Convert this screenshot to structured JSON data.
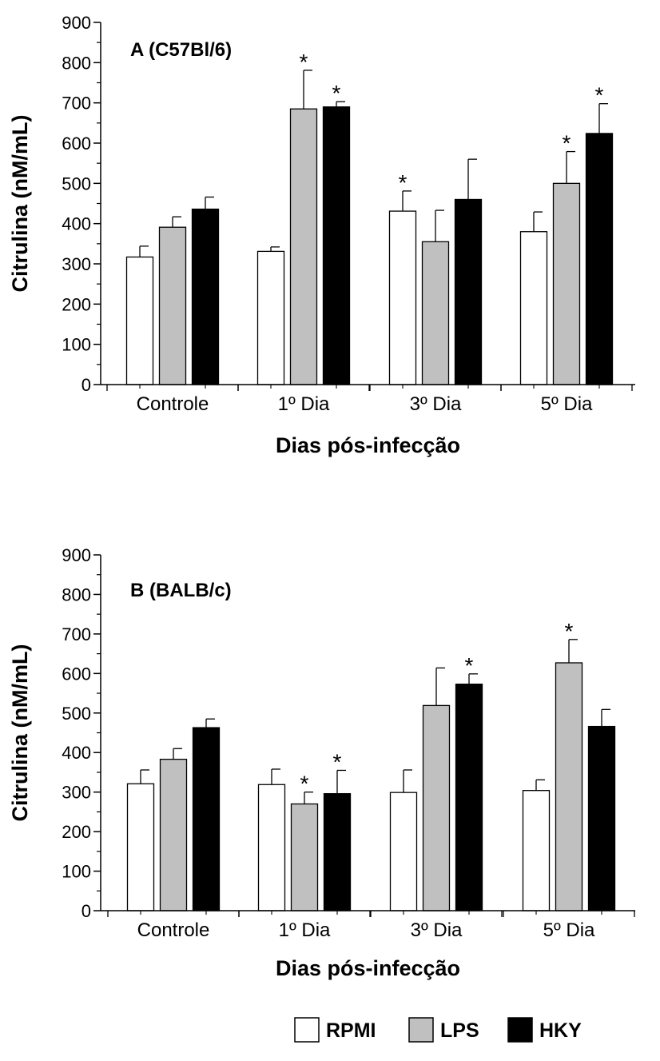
{
  "legend": [
    {
      "name": "RPMI",
      "color": "#ffffff"
    },
    {
      "name": "LPS",
      "color": "#c0c0c0"
    },
    {
      "name": "HKY",
      "color": "#000000"
    }
  ],
  "chart_data": [
    {
      "type": "bar",
      "title": "A (C57Bl/6)",
      "xlabel": "Dias pós-infecção",
      "ylabel": "Citrulina (nM/mL)",
      "ylim": [
        0,
        900
      ],
      "yticks": [
        "0",
        "100",
        "200",
        "300",
        "400",
        "500",
        "600",
        "700",
        "800",
        "900"
      ],
      "categories": [
        "Controle",
        "1º Dia",
        "3º Dia",
        "5º Dia"
      ],
      "series": [
        {
          "name": "RPMI",
          "color": "#ffffff",
          "values": [
            317,
            331,
            431,
            380
          ],
          "errors": [
            27,
            11,
            50,
            49
          ],
          "significant": [
            false,
            false,
            true,
            false
          ]
        },
        {
          "name": "LPS",
          "color": "#c0c0c0",
          "values": [
            391,
            685,
            355,
            500
          ],
          "errors": [
            26,
            96,
            78,
            79
          ],
          "significant": [
            false,
            true,
            false,
            true
          ]
        },
        {
          "name": "HKY",
          "color": "#000000",
          "values": [
            436,
            690,
            460,
            624
          ],
          "errors": [
            30,
            13,
            100,
            74
          ],
          "significant": [
            false,
            true,
            false,
            true
          ]
        }
      ],
      "significance_mark": "*",
      "legend_position": "none",
      "grid": false
    },
    {
      "type": "bar",
      "title": "B (BALB/c)",
      "xlabel": "Dias pós-infecção",
      "ylabel": "Citrulina (nM/mL)",
      "ylim": [
        0,
        900
      ],
      "yticks": [
        "0",
        "100",
        "200",
        "300",
        "400",
        "500",
        "600",
        "700",
        "800",
        "900"
      ],
      "categories": [
        "Controle",
        "1º Dia",
        "3º Dia",
        "5º Dia"
      ],
      "series": [
        {
          "name": "RPMI",
          "color": "#ffffff",
          "values": [
            321,
            319,
            299,
            304
          ],
          "errors": [
            35,
            39,
            57,
            27
          ],
          "significant": [
            false,
            false,
            false,
            false
          ]
        },
        {
          "name": "LPS",
          "color": "#c0c0c0",
          "values": [
            383,
            270,
            519,
            627
          ],
          "errors": [
            27,
            30,
            95,
            59
          ],
          "significant": [
            false,
            true,
            false,
            true
          ]
        },
        {
          "name": "HKY",
          "color": "#000000",
          "values": [
            463,
            296,
            573,
            466
          ],
          "errors": [
            22,
            59,
            26,
            43
          ],
          "significant": [
            false,
            true,
            true,
            false
          ]
        }
      ],
      "significance_mark": "*",
      "legend_position": "bottom",
      "grid": false
    }
  ]
}
